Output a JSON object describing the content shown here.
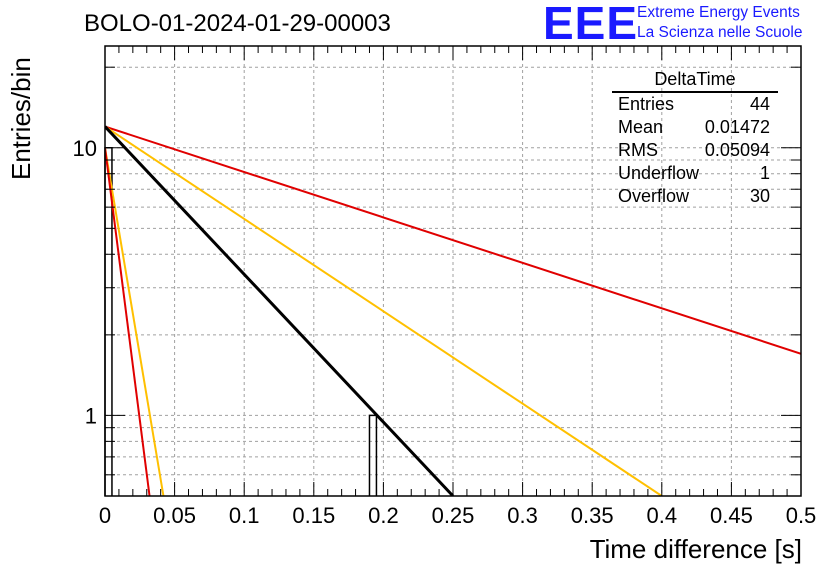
{
  "title": "BOLO-01-2024-01-29-00003",
  "logo": {
    "mark": "EEE",
    "line1": "Extreme Energy Events",
    "line2": "La Scienza nelle Scuole",
    "color": "#1a1aff"
  },
  "stats": {
    "name": "DeltaTime",
    "rows": [
      {
        "label": "Entries",
        "value": "44"
      },
      {
        "label": "Mean",
        "value": "0.01472"
      },
      {
        "label": "RMS",
        "value": "0.05094"
      },
      {
        "label": "Underflow",
        "value": "1"
      },
      {
        "label": "Overflow",
        "value": "30"
      }
    ]
  },
  "chart_data": {
    "type": "line",
    "xlabel": "Time difference [s]",
    "ylabel": "Entries/bin",
    "xlim": [
      0,
      0.5
    ],
    "ylim": [
      0.5,
      24
    ],
    "log_y": true,
    "grid": true,
    "x_ticks": [
      "0",
      "0.05",
      "0.1",
      "0.15",
      "0.2",
      "0.25",
      "0.3",
      "0.35",
      "0.4",
      "0.45",
      "0.5"
    ],
    "y_ticks": [
      "1",
      "10"
    ],
    "histogram": {
      "color": "#000000",
      "bin_width": 0.005,
      "bins": [
        {
          "x": 0.0,
          "y": 10
        },
        {
          "x": 0.19,
          "y": 1
        }
      ]
    },
    "series": [
      {
        "color": "#e00000",
        "x": [
          0.0,
          0.5
        ],
        "y": [
          12.0,
          1.7
        ]
      },
      {
        "color": "#ffc000",
        "x": [
          0.0,
          0.4
        ],
        "y": [
          12.0,
          0.5
        ]
      },
      {
        "color": "#000000",
        "x": [
          0.0,
          0.25
        ],
        "y": [
          12.0,
          0.5
        ]
      },
      {
        "color": "#ffc000",
        "x": [
          0.0,
          0.042
        ],
        "y": [
          10.0,
          0.5
        ]
      },
      {
        "color": "#e00000",
        "x": [
          0.0,
          0.032
        ],
        "y": [
          10.0,
          0.5
        ]
      }
    ]
  }
}
